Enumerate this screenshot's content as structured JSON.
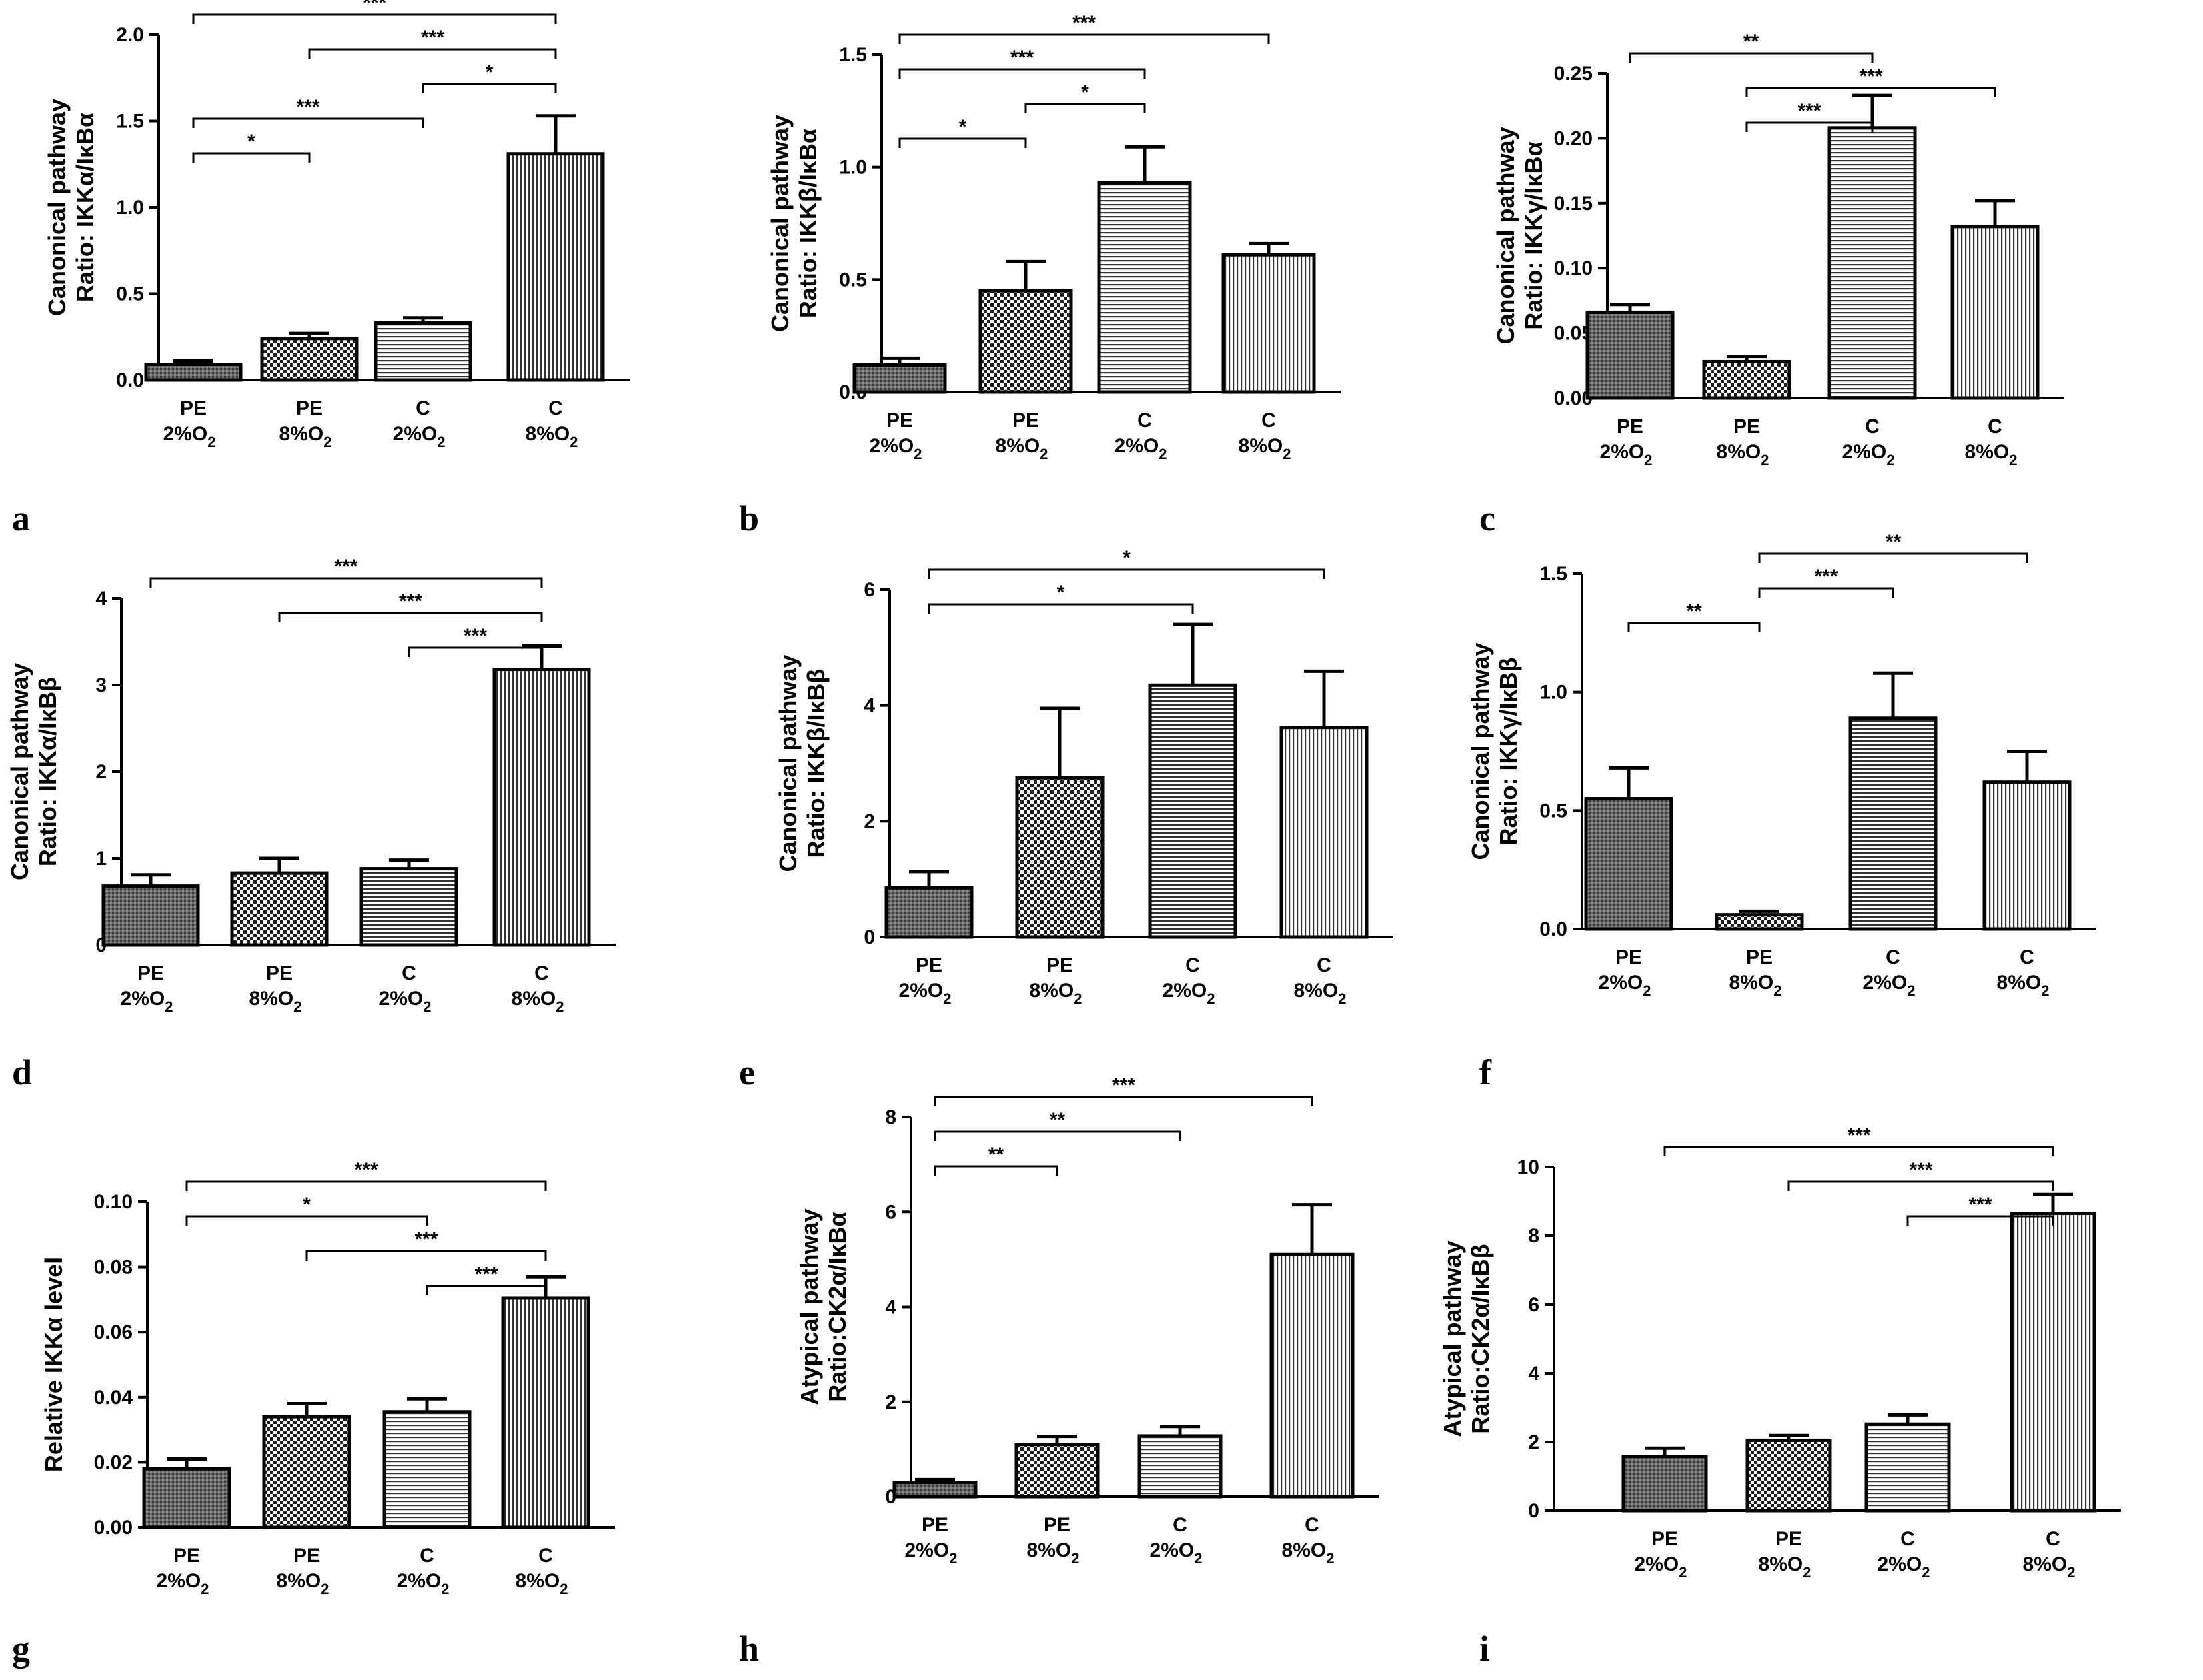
{
  "chart_data": [
    {
      "type": "bar",
      "panel": "a",
      "ylabel_line1": "Canonical pathway",
      "ylabel_line2": "Ratio: IKKα/IκBα",
      "ylim": [
        0,
        2.0
      ],
      "yticks": [
        "0.0",
        "0.5",
        "1.0",
        "1.5",
        "2.0"
      ],
      "categories": [
        [
          "PE",
          "2%O",
          "2"
        ],
        [
          "PE",
          "8%O",
          "2"
        ],
        [
          "C",
          "2%O",
          "2"
        ],
        [
          "C",
          "8%O",
          "2"
        ]
      ],
      "values": [
        0.09,
        0.24,
        0.33,
        1.31
      ],
      "errors": [
        0.02,
        0.03,
        0.03,
        0.22
      ],
      "significance": [
        {
          "from": 0,
          "to": 3,
          "label": "***"
        },
        {
          "from": 1,
          "to": 3,
          "label": "***"
        },
        {
          "from": 2,
          "to": 3,
          "label": "*"
        },
        {
          "from": 0,
          "to": 2,
          "label": "***"
        },
        {
          "from": 0,
          "to": 1,
          "label": "*"
        }
      ]
    },
    {
      "type": "bar",
      "panel": "b",
      "ylabel_line1": "Canonical pathway",
      "ylabel_line2": "Ratio: IKKβ/IκBα",
      "ylim": [
        0,
        1.5
      ],
      "yticks": [
        "0.0",
        "0.5",
        "1.0",
        "1.5"
      ],
      "categories": [
        [
          "PE",
          "2%O",
          "2"
        ],
        [
          "PE",
          "8%O",
          "2"
        ],
        [
          "C",
          "2%O",
          "2"
        ],
        [
          "C",
          "8%O",
          "2"
        ]
      ],
      "values": [
        0.12,
        0.45,
        0.93,
        0.61
      ],
      "errors": [
        0.03,
        0.13,
        0.16,
        0.05
      ],
      "significance": [
        {
          "from": 0,
          "to": 3,
          "label": "***"
        },
        {
          "from": 0,
          "to": 2,
          "label": "***"
        },
        {
          "from": 1,
          "to": 2,
          "label": "*"
        },
        {
          "from": 0,
          "to": 1,
          "label": "*"
        }
      ]
    },
    {
      "type": "bar",
      "panel": "c",
      "ylabel_line1": "Canonical pathway",
      "ylabel_line2": "Ratio: IKKγ/IκBα",
      "ylim": [
        0,
        0.25
      ],
      "yticks": [
        "0.00",
        "0.05",
        "0.10",
        "0.15",
        "0.20",
        "0.25"
      ],
      "categories": [
        [
          "PE",
          "2%O",
          "2"
        ],
        [
          "PE",
          "8%O",
          "2"
        ],
        [
          "C",
          "2%O",
          "2"
        ],
        [
          "C",
          "8%O",
          "2"
        ]
      ],
      "values": [
        0.066,
        0.028,
        0.208,
        0.132
      ],
      "errors": [
        0.006,
        0.004,
        0.025,
        0.02
      ],
      "significance": [
        {
          "from": 0,
          "to": 2,
          "label": "**"
        },
        {
          "from": 1,
          "to": 3,
          "label": "***"
        },
        {
          "from": 1,
          "to": 2,
          "label": "***"
        }
      ]
    },
    {
      "type": "bar",
      "panel": "d",
      "ylabel_line1": "Canonical pathway",
      "ylabel_line2": "Ratio: IKKα/IκBβ",
      "ylim": [
        0,
        4
      ],
      "yticks": [
        "0",
        "1",
        "2",
        "3",
        "4"
      ],
      "categories": [
        [
          "PE",
          "2%O",
          "2"
        ],
        [
          "PE",
          "8%O",
          "2"
        ],
        [
          "C",
          "2%O",
          "2"
        ],
        [
          "C",
          "8%O",
          "2"
        ]
      ],
      "values": [
        0.68,
        0.83,
        0.88,
        3.18
      ],
      "errors": [
        0.13,
        0.17,
        0.1,
        0.27
      ],
      "significance": [
        {
          "from": 0,
          "to": 3,
          "label": "***"
        },
        {
          "from": 1,
          "to": 3,
          "label": "***"
        },
        {
          "from": 2,
          "to": 3,
          "label": "***"
        }
      ]
    },
    {
      "type": "bar",
      "panel": "e",
      "ylabel_line1": "Canonical pathway",
      "ylabel_line2": "Ratio: IKKβ/IκBβ",
      "ylim": [
        0,
        6
      ],
      "yticks": [
        "0",
        "2",
        "4",
        "6"
      ],
      "categories": [
        [
          "PE",
          "2%O",
          "2"
        ],
        [
          "PE",
          "8%O",
          "2"
        ],
        [
          "C",
          "2%O",
          "2"
        ],
        [
          "C",
          "8%O",
          "2"
        ]
      ],
      "values": [
        0.85,
        2.75,
        4.35,
        3.62
      ],
      "errors": [
        0.28,
        1.2,
        1.05,
        0.97
      ],
      "significance": [
        {
          "from": 0,
          "to": 3,
          "label": "*"
        },
        {
          "from": 0,
          "to": 2,
          "label": "*"
        }
      ]
    },
    {
      "type": "bar",
      "panel": "f",
      "ylabel_line1": "Canonical pathway",
      "ylabel_line2": "Ratio: IKKγ/IκBβ",
      "ylim": [
        0,
        1.5
      ],
      "yticks": [
        "0.0",
        "0.5",
        "1.0",
        "1.5"
      ],
      "categories": [
        [
          "PE",
          "2%O",
          "2"
        ],
        [
          "PE",
          "8%O",
          "2"
        ],
        [
          "C",
          "2%O",
          "2"
        ],
        [
          "C",
          "8%O",
          "2"
        ]
      ],
      "values": [
        0.55,
        0.06,
        0.89,
        0.62
      ],
      "errors": [
        0.13,
        0.015,
        0.19,
        0.13
      ],
      "significance": [
        {
          "from": 1,
          "to": 3,
          "label": "**"
        },
        {
          "from": 1,
          "to": 2,
          "label": "***"
        },
        {
          "from": 0,
          "to": 1,
          "label": "**"
        }
      ]
    },
    {
      "type": "bar",
      "panel": "g",
      "ylabel_line1": "",
      "ylabel_line2": "Relative IKKα level",
      "ylim": [
        0,
        0.1
      ],
      "yticks": [
        "0.00",
        "0.02",
        "0.04",
        "0.06",
        "0.08",
        "0.10"
      ],
      "categories": [
        [
          "PE",
          "2%O",
          "2"
        ],
        [
          "PE",
          "8%O",
          "2"
        ],
        [
          "C",
          "2%O",
          "2"
        ],
        [
          "C",
          "8%O",
          "2"
        ]
      ],
      "values": [
        0.018,
        0.034,
        0.0355,
        0.0705
      ],
      "errors": [
        0.003,
        0.004,
        0.004,
        0.0065
      ],
      "significance": [
        {
          "from": 0,
          "to": 3,
          "label": "***"
        },
        {
          "from": 0,
          "to": 2,
          "label": "*"
        },
        {
          "from": 1,
          "to": 3,
          "label": "***"
        },
        {
          "from": 2,
          "to": 3,
          "label": "***"
        }
      ]
    },
    {
      "type": "bar",
      "panel": "h",
      "ylabel_line1": "Atypical pathway",
      "ylabel_line2": "Ratio:CK2α/IκBα",
      "ylim": [
        0,
        8
      ],
      "yticks": [
        "0",
        "2",
        "4",
        "6",
        "8"
      ],
      "categories": [
        [
          "PE",
          "2%O",
          "2"
        ],
        [
          "PE",
          "8%O",
          "2"
        ],
        [
          "C",
          "2%O",
          "2"
        ],
        [
          "C",
          "8%O",
          "2"
        ]
      ],
      "values": [
        0.3,
        1.1,
        1.28,
        5.1
      ],
      "errors": [
        0.06,
        0.17,
        0.2,
        1.05
      ],
      "significance": [
        {
          "from": 0,
          "to": 3,
          "label": "***"
        },
        {
          "from": 0,
          "to": 2,
          "label": "**"
        },
        {
          "from": 0,
          "to": 1,
          "label": "**"
        }
      ]
    },
    {
      "type": "bar",
      "panel": "i",
      "ylabel_line1": "Atypical pathway",
      "ylabel_line2": "Ratio:CK2α/IκBβ",
      "ylim": [
        0,
        10
      ],
      "yticks": [
        "0",
        "2",
        "4",
        "6",
        "8",
        "10"
      ],
      "categories": [
        [
          "PE",
          "2%O",
          "2"
        ],
        [
          "PE",
          "8%O",
          "2"
        ],
        [
          "C",
          "2%O",
          "2"
        ],
        [
          "C",
          "8%O",
          "2"
        ]
      ],
      "values": [
        1.58,
        2.05,
        2.52,
        8.65
      ],
      "errors": [
        0.24,
        0.14,
        0.27,
        0.55
      ],
      "significance": [
        {
          "from": 0,
          "to": 3,
          "label": "***"
        },
        {
          "from": 1,
          "to": 3,
          "label": "***"
        },
        {
          "from": 2,
          "to": 3,
          "label": "***"
        }
      ]
    }
  ]
}
